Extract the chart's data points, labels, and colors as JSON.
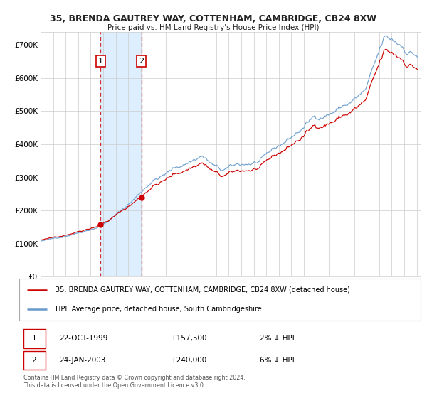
{
  "title": "35, BRENDA GAUTREY WAY, COTTENHAM, CAMBRIDGE, CB24 8XW",
  "subtitle": "Price paid vs. HM Land Registry's House Price Index (HPI)",
  "ytick_vals": [
    0,
    100000,
    200000,
    300000,
    400000,
    500000,
    600000,
    700000
  ],
  "ylim": [
    0,
    740000
  ],
  "sale1_year": 1999,
  "sale1_month": 10,
  "sale1_price": 157500,
  "sale2_year": 2003,
  "sale2_month": 1,
  "sale2_price": 240000,
  "legend_property": "35, BRENDA GAUTREY WAY, COTTENHAM, CAMBRIDGE, CB24 8XW (detached house)",
  "legend_hpi": "HPI: Average price, detached house, South Cambridgeshire",
  "footer": "Contains HM Land Registry data © Crown copyright and database right 2024.\nThis data is licensed under the Open Government Licence v3.0.",
  "table_row1": [
    "1",
    "22-OCT-1999",
    "£157,500",
    "2% ↓ HPI"
  ],
  "table_row2": [
    "2",
    "24-JAN-2003",
    "£240,000",
    "6% ↓ HPI"
  ],
  "property_color": "#cc0000",
  "hpi_color": "#6699cc",
  "background_color": "#ffffff",
  "grid_color": "#cccccc",
  "highlight_color": "#ddeeff"
}
